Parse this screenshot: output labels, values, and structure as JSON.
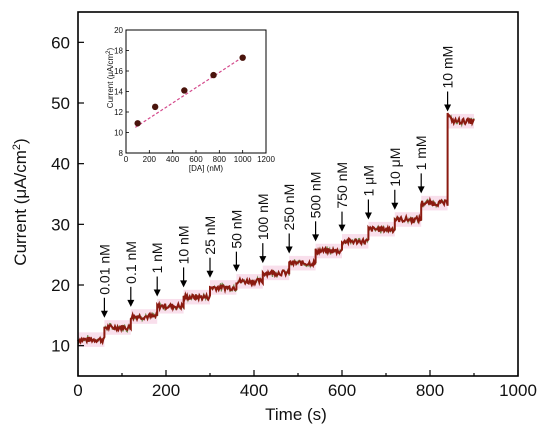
{
  "chart_data": [
    {
      "type": "line",
      "title": "",
      "xlabel": "Time (s)",
      "ylabel": "Current (μA/cm²)",
      "ylabel_main": "Current (μA/cm",
      "ylabel_sup": "2",
      "ylabel_end": ")",
      "xlim": [
        0,
        1000
      ],
      "ylim": [
        5,
        65
      ],
      "xticks": [
        0,
        200,
        400,
        600,
        800,
        1000
      ],
      "yticks": [
        10,
        20,
        30,
        40,
        50,
        60
      ],
      "grid": false,
      "colors": {
        "trace": "#8b1a10",
        "noise_trace": "#3a6a10",
        "band": "#f4c4dc"
      },
      "series": [
        {
          "x": [
            0,
            60,
            120,
            180,
            240,
            300,
            360,
            420,
            480,
            540,
            600,
            660,
            720,
            780,
            840,
            900
          ],
          "y": [
            11.0,
            13.0,
            14.8,
            16.5,
            18.0,
            19.6,
            20.6,
            22.0,
            23.6,
            25.6,
            27.2,
            29.2,
            30.8,
            33.5,
            47.0,
            47.0
          ]
        }
      ],
      "annotations": [
        {
          "label": "0.01 nM",
          "x": 60
        },
        {
          "label": "0.1 nM",
          "x": 120
        },
        {
          "label": "1 nM",
          "x": 180
        },
        {
          "label": "10 nM",
          "x": 240
        },
        {
          "label": "25 nM",
          "x": 300
        },
        {
          "label": "50 nM",
          "x": 360
        },
        {
          "label": "100 nM",
          "x": 420
        },
        {
          "label": "250 nM",
          "x": 480
        },
        {
          "label": "500 nM",
          "x": 540
        },
        {
          "label": "750 nM",
          "x": 600
        },
        {
          "label": "1 μM",
          "x": 660
        },
        {
          "label": "10 μM",
          "x": 720
        },
        {
          "label": "1 mM",
          "x": 780
        },
        {
          "label": "10 mM",
          "x": 840
        }
      ]
    },
    {
      "type": "scatter",
      "title": "",
      "xlabel": "[DA] (nM)",
      "ylabel": "Current (μA/cm²)",
      "ylabel_main": "Current (μA/cm",
      "ylabel_sup": "2",
      "ylabel_end": ")",
      "xlim": [
        0,
        1200
      ],
      "ylim": [
        8,
        20
      ],
      "xticks": [
        0,
        200,
        400,
        600,
        800,
        1000,
        1200
      ],
      "yticks": [
        8,
        10,
        12,
        14,
        16,
        18,
        20
      ],
      "grid": false,
      "colors": {
        "points": "#4a140c",
        "fit": "#d44a8c"
      },
      "series": [
        {
          "x": [
            100,
            250,
            500,
            750,
            1000
          ],
          "y": [
            10.9,
            12.5,
            14.1,
            15.6,
            17.3
          ]
        }
      ],
      "fit": {
        "x": [
          80,
          1020
        ],
        "y": [
          10.5,
          17.5
        ]
      }
    }
  ]
}
